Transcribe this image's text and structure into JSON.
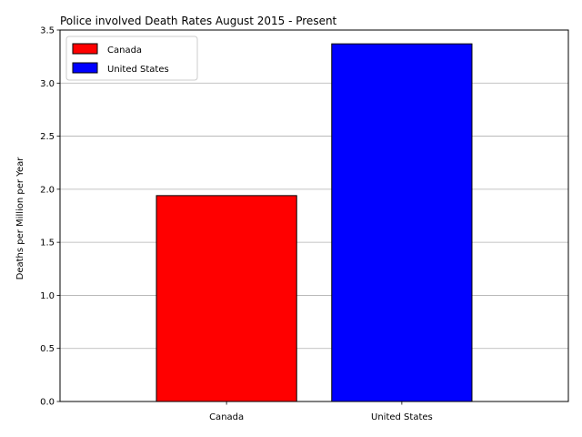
{
  "chart_data": {
    "type": "bar",
    "title": "Police involved Death Rates August 2015 - Present",
    "xlabel": "",
    "ylabel": "Deaths per Million per Year",
    "categories": [
      "Canada",
      "United States"
    ],
    "values": [
      1.94,
      3.37
    ],
    "colors": [
      "#ff0000",
      "#0000ff"
    ],
    "edge_color": "#000000",
    "ylim": [
      0,
      3.5
    ],
    "yticks": [
      0.0,
      0.5,
      1.0,
      1.5,
      2.0,
      2.5,
      3.0,
      3.5
    ],
    "ytick_labels": [
      "0.0",
      "0.5",
      "1.0",
      "1.5",
      "2.0",
      "2.5",
      "3.0",
      "3.5"
    ],
    "grid": "horizontal",
    "legend": {
      "placement": "top-left",
      "entries": [
        {
          "label": "Canada",
          "color": "#ff0000"
        },
        {
          "label": "United States",
          "color": "#0000ff"
        }
      ]
    }
  }
}
